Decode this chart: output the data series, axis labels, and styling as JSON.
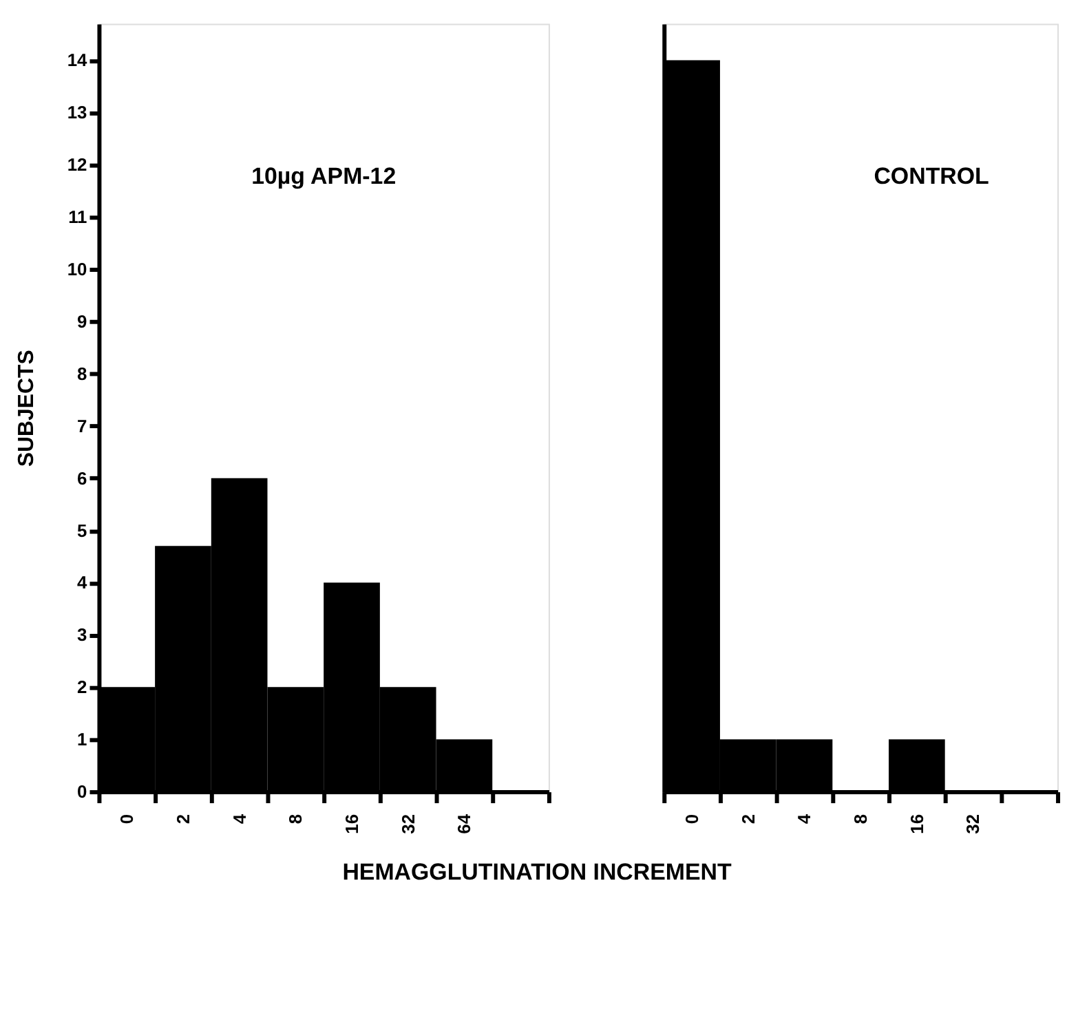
{
  "chart_data": [
    {
      "type": "bar",
      "title": "10µg APM-12",
      "ylabel": "SUBJECTS",
      "xlabel": "HEMAGGLUTINATION INCREMENT",
      "categories": [
        "0",
        "2",
        "4",
        "8",
        "16",
        "32",
        "64",
        null
      ],
      "values": [
        2,
        4.7,
        6,
        2,
        4,
        2,
        1,
        0
      ],
      "color": "#000000",
      "ylim": [
        0,
        14.7
      ],
      "yticks": [
        0,
        1,
        2,
        3,
        4,
        5,
        6,
        7,
        8,
        9,
        10,
        11,
        12,
        13,
        14
      ],
      "grid": false
    },
    {
      "type": "bar",
      "title": "CONTROL",
      "categories": [
        "0",
        "2",
        "4",
        "8",
        "16",
        "32",
        null
      ],
      "values": [
        14,
        1,
        1,
        0,
        1,
        0,
        0
      ],
      "color": "#000000",
      "ylim": [
        0,
        14.7
      ],
      "tick_labels": "x",
      "grid": false
    }
  ]
}
